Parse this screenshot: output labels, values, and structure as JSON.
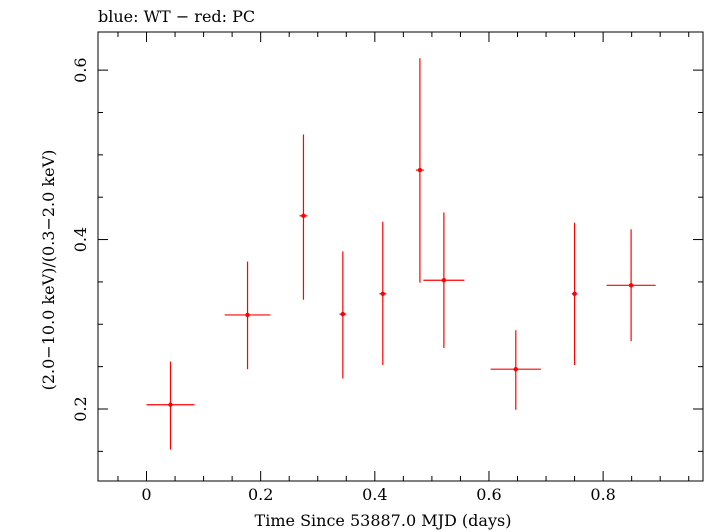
{
  "header": {
    "text": "blue: WT − red: PC"
  },
  "colors": {
    "pc": "#ff0000",
    "wt": "#0000ff",
    "axis": "#000000",
    "background": "#ffffff"
  },
  "chart_data": {
    "type": "scatter",
    "title": "",
    "xlabel": "Time Since 53887.0 MJD (days)",
    "ylabel": "(2.0−10.0 keV)/(0.3−2.0 keV)",
    "xlim": [
      -0.085,
      0.975
    ],
    "ylim": [
      0.115,
      0.645
    ],
    "x_ticks": [
      0,
      0.2,
      0.4,
      0.6,
      0.8
    ],
    "x_tick_labels": [
      "0",
      "0.2",
      "0.4",
      "0.6",
      "0.8"
    ],
    "y_ticks": [
      0.2,
      0.4,
      0.6
    ],
    "y_tick_labels": [
      "0.2",
      "0.4",
      "0.6"
    ],
    "grid": false,
    "series": [
      {
        "name": "PC",
        "color": "#ff0000",
        "points": [
          {
            "x": 0.042,
            "y": 0.205,
            "xerr": 0.042,
            "ylo": 0.152,
            "yhi": 0.256
          },
          {
            "x": 0.177,
            "y": 0.311,
            "xerr": 0.04,
            "ylo": 0.247,
            "yhi": 0.374
          },
          {
            "x": 0.275,
            "y": 0.428,
            "xerr": 0.007,
            "ylo": 0.329,
            "yhi": 0.524
          },
          {
            "x": 0.344,
            "y": 0.312,
            "xerr": 0.006,
            "ylo": 0.236,
            "yhi": 0.386
          },
          {
            "x": 0.414,
            "y": 0.336,
            "xerr": 0.006,
            "ylo": 0.252,
            "yhi": 0.421
          },
          {
            "x": 0.479,
            "y": 0.482,
            "xerr": 0.007,
            "ylo": 0.349,
            "yhi": 0.614
          },
          {
            "x": 0.521,
            "y": 0.352,
            "xerr": 0.036,
            "ylo": 0.272,
            "yhi": 0.432
          },
          {
            "x": 0.647,
            "y": 0.247,
            "xerr": 0.044,
            "ylo": 0.199,
            "yhi": 0.293
          },
          {
            "x": 0.75,
            "y": 0.336,
            "xerr": 0.005,
            "ylo": 0.252,
            "yhi": 0.42
          },
          {
            "x": 0.849,
            "y": 0.346,
            "xerr": 0.043,
            "ylo": 0.28,
            "yhi": 0.412
          }
        ]
      }
    ]
  }
}
